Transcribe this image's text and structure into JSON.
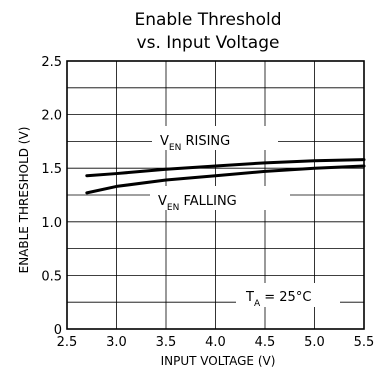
{
  "chart_data": {
    "type": "line",
    "title_line1": "Enable Threshold",
    "title_line2": "vs. Input Voltage",
    "xlabel": "INPUT VOLTAGE (V)",
    "ylabel": "ENABLE THRESHOLD (V)",
    "xlim": [
      2.5,
      5.5
    ],
    "ylim": [
      0,
      2.5
    ],
    "x_ticks": [
      "2.5",
      "3.0",
      "3.5",
      "4.0",
      "4.5",
      "5.0",
      "5.5"
    ],
    "y_ticks": [
      "0",
      "0.5",
      "1.0",
      "1.5",
      "2.0",
      "2.5"
    ],
    "x_tick_values": [
      2.5,
      3.0,
      3.5,
      4.0,
      4.5,
      5.0,
      5.5
    ],
    "y_tick_values": [
      0,
      0.5,
      1.0,
      1.5,
      2.0,
      2.5
    ],
    "x_grid_values": [
      2.5,
      3.0,
      3.5,
      4.0,
      4.5,
      5.0,
      5.5
    ],
    "y_grid_values": [
      0,
      0.25,
      0.5,
      0.75,
      1.0,
      1.25,
      1.5,
      1.75,
      2.0,
      2.25,
      2.5
    ],
    "grid": true,
    "series": [
      {
        "name": "VEN RISING",
        "x": [
          2.7,
          3.0,
          3.5,
          4.0,
          4.5,
          5.0,
          5.5
        ],
        "y": [
          1.43,
          1.45,
          1.49,
          1.52,
          1.55,
          1.57,
          1.58
        ]
      },
      {
        "name": "VEN FALLING",
        "x": [
          2.7,
          3.0,
          3.5,
          4.0,
          4.5,
          5.0,
          5.5
        ],
        "y": [
          1.27,
          1.33,
          1.39,
          1.43,
          1.47,
          1.5,
          1.52
        ]
      }
    ],
    "annotations": {
      "rising": {
        "main": "V",
        "sub": "EN",
        "rest": " RISING"
      },
      "falling": {
        "main": "V",
        "sub": "EN",
        "rest": " FALLING"
      },
      "temp": {
        "main": "T",
        "sub": "A",
        "rest": " = 25°C"
      }
    }
  }
}
